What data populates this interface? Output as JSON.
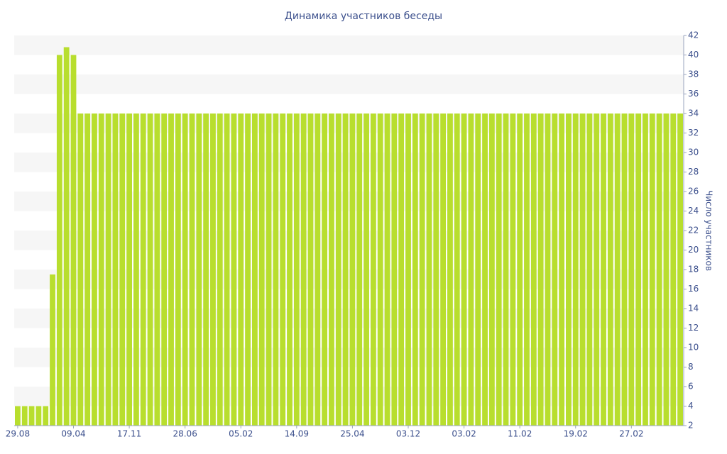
{
  "chart_data": {
    "type": "bar",
    "title": "Динамика участников беседы",
    "y_label": "Число участников",
    "categories": [
      "29.08",
      null,
      null,
      null,
      null,
      null,
      null,
      null,
      "09.04",
      null,
      null,
      null,
      null,
      null,
      null,
      null,
      "17.11",
      null,
      null,
      null,
      null,
      null,
      null,
      null,
      "28.06",
      null,
      null,
      null,
      null,
      null,
      null,
      null,
      "05.02",
      null,
      null,
      null,
      null,
      null,
      null,
      null,
      "14.09",
      null,
      null,
      null,
      null,
      null,
      null,
      null,
      "25.04",
      null,
      null,
      null,
      null,
      null,
      null,
      null,
      "03.12",
      null,
      null,
      null,
      null,
      null,
      null,
      null,
      "03.02",
      null,
      null,
      null,
      null,
      null,
      null,
      null,
      "11.02",
      null,
      null,
      null,
      null,
      null,
      null,
      null,
      "19.02",
      null,
      null,
      null,
      null,
      null,
      null,
      null,
      "27.02",
      null,
      null,
      null,
      null,
      null,
      null,
      null
    ],
    "values": [
      4,
      4,
      4,
      4,
      4,
      17.5,
      40,
      40.8,
      40,
      34,
      34,
      34,
      34,
      34,
      34,
      34,
      34,
      34,
      34,
      34,
      34,
      34,
      34,
      34,
      34,
      34,
      34,
      34,
      34,
      34,
      34,
      34,
      34,
      34,
      34,
      34,
      34,
      34,
      34,
      34,
      34,
      34,
      34,
      34,
      34,
      34,
      34,
      34,
      34,
      34,
      34,
      34,
      34,
      34,
      34,
      34,
      34,
      34,
      34,
      34,
      34,
      34,
      34,
      34,
      34,
      34,
      34,
      34,
      34,
      34,
      34,
      34,
      34,
      34,
      34,
      34,
      34,
      34,
      34,
      34,
      34,
      34,
      34,
      34,
      34,
      34,
      34,
      34,
      34,
      34,
      34,
      34,
      34,
      34,
      34,
      34
    ],
    "color": "#b8de2e",
    "ylim": [
      2,
      42
    ],
    "yticks": [
      2,
      4,
      6,
      8,
      10,
      12,
      14,
      16,
      18,
      20,
      22,
      24,
      26,
      28,
      30,
      32,
      34,
      36,
      38,
      40,
      42
    ],
    "y_axis_side": "right",
    "grid": true
  }
}
